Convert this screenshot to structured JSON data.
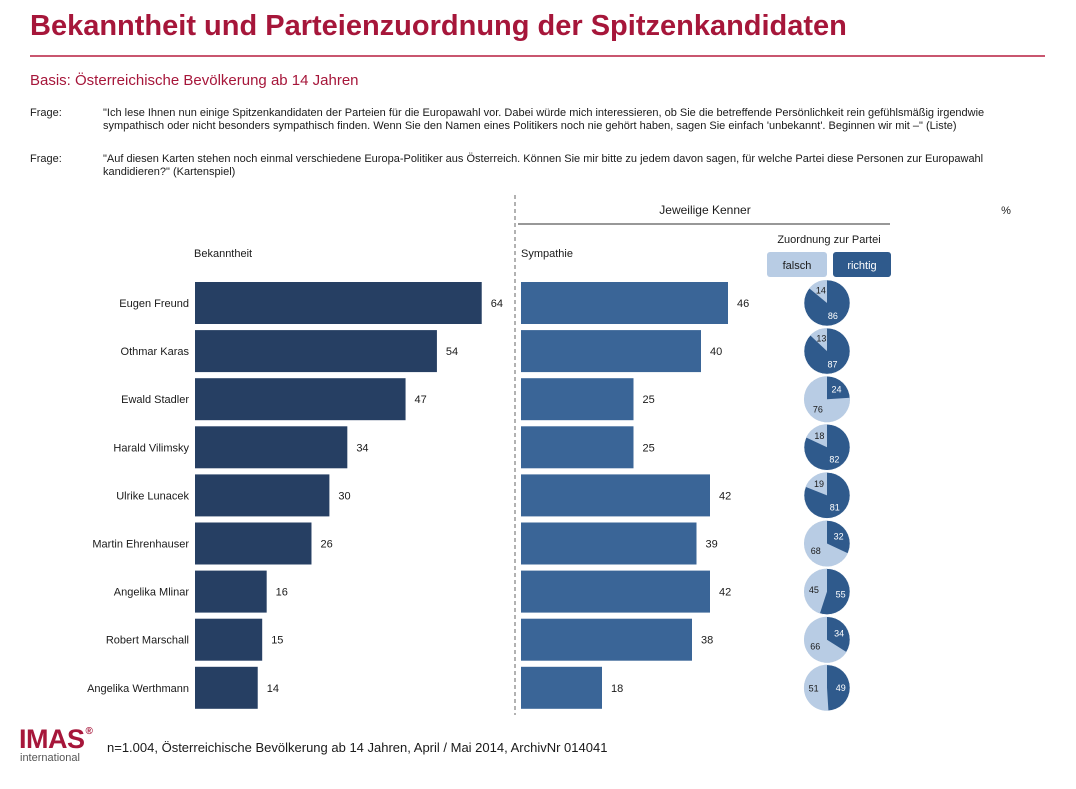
{
  "header": {
    "title": "Bekanntheit und Parteienzuordnung der Spitzenkandidaten",
    "subtitle": "Basis: Österreichische Bevölkerung ab 14 Jahren"
  },
  "questions": [
    {
      "label": "Frage:",
      "text": "\"Ich lese Ihnen nun einige Spitzenkandidaten der Parteien für die Europawahl vor. Dabei würde mich interessieren, ob Sie die betreffende Persönlichkeit rein gefühlsmäßig irgendwie sympathisch oder nicht besonders sympathisch finden. Wenn Sie den Namen eines Politikers noch nie gehört haben, sagen Sie einfach 'unbekannt'. Beginnen wir mit –\" (Liste)"
    },
    {
      "label": "Frage:",
      "text": "\"Auf diesen Karten stehen noch einmal verschiedene Europa-Politiker aus Österreich. Können Sie mir bitte zu jedem davon sagen, für welche Partei diese Personen zur Europawahl kandidieren?\" (Kartenspiel)"
    }
  ],
  "chart_data": {
    "type": "bar",
    "header_kenner": "Jeweilige Kenner",
    "unit_label": "%",
    "zuordnung_label": "Zuordnung zur Partei",
    "categories": [
      "Eugen Freund",
      "Othmar Karas",
      "Ewald Stadler",
      "Harald Vilimsky",
      "Ulrike Lunacek",
      "Martin Ehrenhauser",
      "Angelika Mlinar",
      "Robert Marschall",
      "Angelika Werthmann"
    ],
    "series": [
      {
        "name": "Bekanntheit",
        "values": [
          64,
          54,
          47,
          34,
          30,
          26,
          16,
          15,
          14
        ]
      },
      {
        "name": "Sympathie",
        "values": [
          46,
          40,
          25,
          25,
          42,
          39,
          42,
          38,
          18
        ]
      }
    ],
    "zuordnung": {
      "categories": [
        "falsch",
        "richtig"
      ],
      "falsch": [
        14,
        13,
        76,
        18,
        19,
        68,
        45,
        66,
        51
      ],
      "richtig": [
        86,
        87,
        24,
        82,
        81,
        32,
        55,
        34,
        49
      ]
    },
    "colors": {
      "bekanntheit": "#263f63",
      "sympathie": "#3a6597",
      "falsch": "#b8cce4",
      "richtig": "#2f5a8c"
    }
  },
  "footer": {
    "logo": "IMAS",
    "logo_mark": "®",
    "logo_sub": "international",
    "note": "n=1.004, Österreichische Bevölkerung ab 14 Jahren, April / Mai 2014, ArchivNr  014041"
  }
}
